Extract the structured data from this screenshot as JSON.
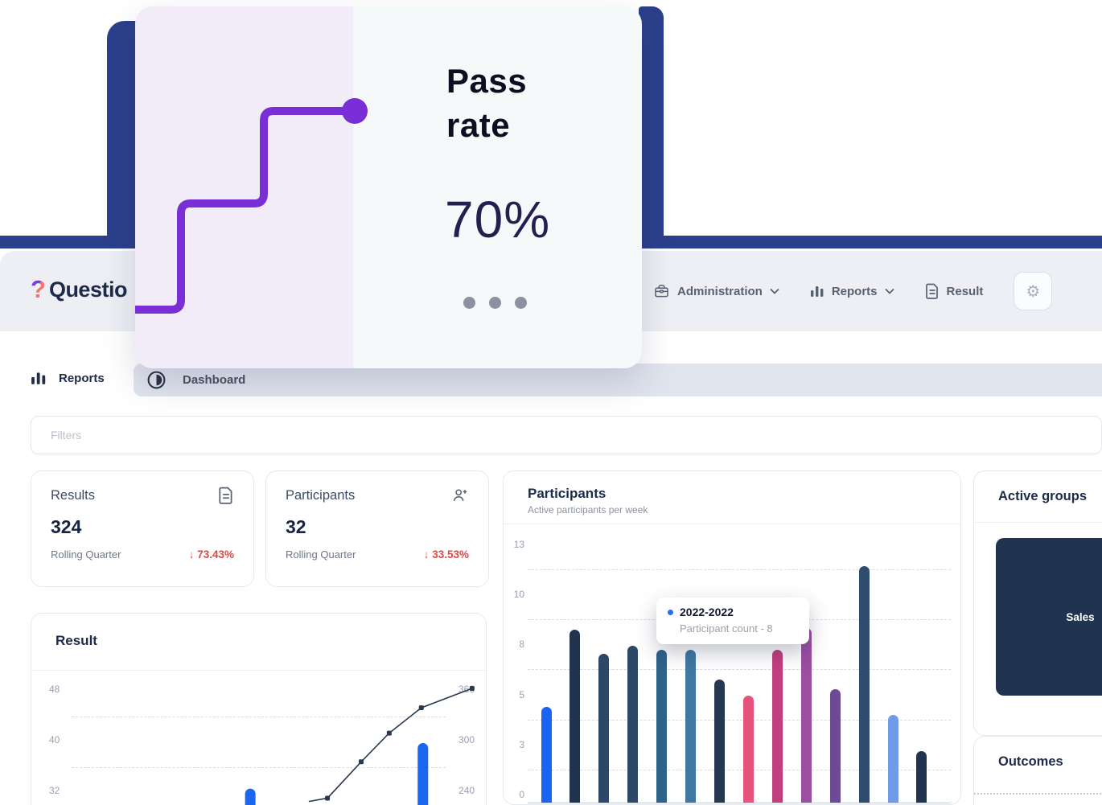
{
  "overlay_card": {
    "title_line1": "Pass",
    "title_line2": "rate",
    "value": "70%",
    "accent_color": "#7a2ed6"
  },
  "brand": {
    "logo_mark": "?",
    "logo_text": "Questio"
  },
  "nav": {
    "items": [
      {
        "label": "Administration",
        "icon": "briefcase",
        "has_chevron": true
      },
      {
        "label": "Reports",
        "icon": "bar-chart",
        "has_chevron": true
      },
      {
        "label": "Result",
        "icon": "document",
        "has_chevron": false
      }
    ],
    "gear_icon": "⚙"
  },
  "tabstrip": {
    "section_label": "Reports",
    "active_tab": "Dashboard"
  },
  "filters": {
    "placeholder": "Filters"
  },
  "stat_cards": [
    {
      "title": "Results",
      "icon": "document",
      "value": "324",
      "period": "Rolling Quarter",
      "delta": "↓ 73.43%",
      "delta_color": "#e04646"
    },
    {
      "title": "Participants",
      "icon": "person-add",
      "value": "32",
      "period": "Rolling Quarter",
      "delta": "↓ 33.53%",
      "delta_color": "#e04646"
    }
  ],
  "result_chart": {
    "title": "Result",
    "type": "bar+line",
    "left_axis_ticks": [
      "48",
      "40",
      "32"
    ],
    "right_axis_ticks": [
      "360",
      "300",
      "240"
    ],
    "left_axis_range": [
      32,
      48
    ],
    "right_axis_range": [
      240,
      360
    ],
    "line_series": {
      "color": "#2b3950",
      "points": [
        {
          "x": 0.574,
          "value": 227
        },
        {
          "x": 0.62,
          "value": 231
        },
        {
          "x": 0.703,
          "value": 274
        },
        {
          "x": 0.772,
          "value": 308
        },
        {
          "x": 0.851,
          "value": 338
        },
        {
          "x": 0.976,
          "value": 361
        }
      ]
    },
    "bar_series": {
      "color": "#1b66f0",
      "points": [
        {
          "x": 0.43,
          "value": 32.3
        },
        {
          "x": 0.855,
          "value": 39.5
        }
      ]
    }
  },
  "participants_chart": {
    "title": "Participants",
    "subtitle": "Active participants per week",
    "type": "bar",
    "y_ticks": [
      "13",
      "10",
      "8",
      "5",
      "3",
      "0"
    ],
    "y_max": 13,
    "bars": [
      {
        "value": 4.8,
        "color": "#1a63f4"
      },
      {
        "value": 8.7,
        "color": "#22334e"
      },
      {
        "value": 7.5,
        "color": "#2c4866"
      },
      {
        "value": 7.9,
        "color": "#2c4866"
      },
      {
        "value": 7.7,
        "color": "#2f6388"
      },
      {
        "value": 7.7,
        "color": "#4078a4"
      },
      {
        "value": 6.2,
        "color": "#24384f"
      },
      {
        "value": 5.4,
        "color": "#e8537b"
      },
      {
        "value": 7.7,
        "color": "#c23f7e"
      },
      {
        "value": 8.8,
        "color": "#9c4ea2"
      },
      {
        "value": 5.7,
        "color": "#6c4b94"
      },
      {
        "value": 11.9,
        "color": "#2e4d6e"
      },
      {
        "value": 4.4,
        "color": "#6f9be9"
      },
      {
        "value": 2.6,
        "color": "#22334e"
      }
    ],
    "tooltip": {
      "series": "2022-2022",
      "text": "Participant count - 8",
      "dot_color": "#2e6bf6"
    }
  },
  "active_groups": {
    "title": "Active groups",
    "cells": [
      {
        "label": "Sales",
        "color": "#203450"
      }
    ]
  },
  "outcomes": {
    "title": "Outcomes"
  }
}
